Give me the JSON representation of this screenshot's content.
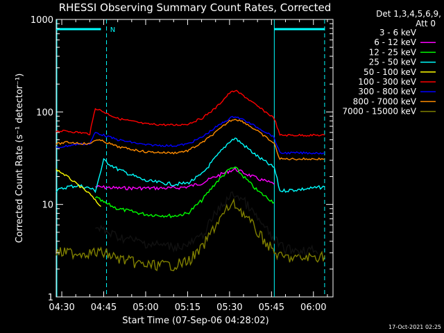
{
  "chart_data": {
    "type": "line",
    "title": "RHESSI Observing Summary Count Rates, Corrected",
    "xlabel": "Start Time (07-Sep-06 04:28:02)",
    "ylabel": "Corrected Count Rate (s⁻¹ detector⁻¹)",
    "y_scale": "log",
    "ylim": [
      1,
      1000
    ],
    "xlim": [
      "04:28",
      "06:07"
    ],
    "x_ticks": [
      "04:30",
      "04:45",
      "05:00",
      "05:15",
      "05:30",
      "05:45",
      "06:00"
    ],
    "y_ticks": [
      "1",
      "10",
      "100",
      "1000"
    ],
    "legend_header": [
      "Det 1,3,4,5,6,9,",
      "Att 0"
    ],
    "legend_placement": "right",
    "footer_date": "17-Oct-2021 02:25",
    "night_markers": [
      {
        "start": "04:28",
        "end": "04:44",
        "label": ""
      },
      {
        "start": "04:44",
        "end": "04:46",
        "label": "N"
      },
      {
        "start": "05:46",
        "end": "06:04",
        "label": ""
      }
    ],
    "series": [
      {
        "name": "3 - 6 keV",
        "color": "#000000",
        "x": [
          "04:42",
          "04:45",
          "04:50",
          "05:00",
          "05:10",
          "05:15",
          "05:20",
          "05:25",
          "05:30",
          "05:32",
          "05:35",
          "05:40",
          "05:45",
          "05:48",
          "05:50",
          "05:55",
          "06:00",
          "06:02"
        ],
        "y": [
          5.5,
          5.2,
          4.5,
          3.8,
          3.5,
          3.6,
          4.5,
          8,
          12,
          13,
          11,
          7,
          4.5,
          3.6,
          3.3,
          3.2,
          3.2,
          3.2
        ]
      },
      {
        "name": "6 - 12 keV",
        "color": "#ff00ff",
        "x": [
          "04:42",
          "04:45",
          "04:50",
          "05:00",
          "05:10",
          "05:15",
          "05:20",
          "05:25",
          "05:30",
          "05:32",
          "05:35",
          "05:40",
          "05:45",
          "05:46"
        ],
        "y": [
          15.5,
          15.3,
          15,
          15,
          15,
          15.5,
          17,
          20,
          23,
          24,
          22,
          19,
          17,
          16.5
        ]
      },
      {
        "name": "12 - 25 keV",
        "color": "#00ff00",
        "x": [
          "04:42",
          "04:45",
          "04:50",
          "05:00",
          "05:10",
          "05:15",
          "05:20",
          "05:25",
          "05:30",
          "05:32",
          "05:35",
          "05:40",
          "05:45",
          "05:46"
        ],
        "y": [
          12,
          10.5,
          9,
          7.8,
          7.5,
          8,
          11,
          17,
          24,
          25,
          20,
          14,
          11,
          10.5
        ]
      },
      {
        "name": "25 - 50 keV",
        "color": "#00ffff",
        "x": [
          "04:28",
          "04:32",
          "04:36",
          "04:40",
          "04:42",
          "04:45",
          "04:50",
          "05:00",
          "05:10",
          "05:15",
          "05:20",
          "05:25",
          "05:30",
          "05:32",
          "05:35",
          "05:40",
          "05:45",
          "05:46",
          "05:48",
          "05:55",
          "06:00",
          "06:04"
        ],
        "y": [
          14,
          15.5,
          16,
          15,
          14,
          30,
          24,
          18,
          16.5,
          17,
          21,
          32,
          48,
          52,
          44,
          33,
          26,
          25,
          14,
          14.5,
          15,
          15.5
        ]
      },
      {
        "name": "50 - 100 keV",
        "color": "#ffff00",
        "x": [
          "04:28",
          "04:32",
          "04:36",
          "04:40",
          "04:42",
          "04:44"
        ],
        "y": [
          24,
          20,
          16,
          13,
          11,
          9.5
        ]
      },
      {
        "name": "100 - 300 keV",
        "color": "#ff0000",
        "x": [
          "04:28",
          "04:32",
          "04:36",
          "04:40",
          "04:42",
          "04:45",
          "04:50",
          "05:00",
          "05:10",
          "05:15",
          "05:20",
          "05:25",
          "05:30",
          "05:32",
          "05:35",
          "05:40",
          "05:45",
          "05:46",
          "05:48",
          "05:55",
          "06:00",
          "06:04"
        ],
        "y": [
          62,
          62,
          60,
          58,
          110,
          100,
          85,
          74,
          72,
          74,
          85,
          110,
          160,
          170,
          150,
          115,
          90,
          85,
          56,
          56,
          56,
          56
        ]
      },
      {
        "name": "300 - 800 keV",
        "color": "#0000ff",
        "x": [
          "04:28",
          "04:32",
          "04:36",
          "04:40",
          "04:42",
          "04:45",
          "04:50",
          "05:00",
          "05:10",
          "05:15",
          "05:20",
          "05:25",
          "05:30",
          "05:32",
          "05:35",
          "05:40",
          "05:45",
          "05:46",
          "05:48",
          "05:55",
          "06:00",
          "06:04"
        ],
        "y": [
          41,
          43,
          45,
          45,
          60,
          56,
          50,
          44,
          43,
          45,
          53,
          68,
          85,
          90,
          82,
          68,
          56,
          52,
          36,
          36,
          36,
          36
        ]
      },
      {
        "name": "800 - 7000 keV",
        "color": "#ff8c00",
        "x": [
          "04:28",
          "04:32",
          "04:36",
          "04:40",
          "04:42",
          "04:45",
          "04:50",
          "05:00",
          "05:10",
          "05:15",
          "05:20",
          "05:25",
          "05:30",
          "05:32",
          "05:35",
          "05:40",
          "05:45",
          "05:46",
          "05:48",
          "05:55",
          "06:00",
          "06:04"
        ],
        "y": [
          45,
          47,
          46,
          45,
          50,
          48,
          42,
          37,
          36,
          38,
          46,
          60,
          80,
          84,
          78,
          62,
          48,
          45,
          31,
          31,
          31,
          31
        ]
      },
      {
        "name": "7000 - 15000 keV",
        "color": "#808000",
        "x": [
          "04:28",
          "04:35",
          "04:40",
          "04:45",
          "04:50",
          "05:00",
          "05:10",
          "05:15",
          "05:20",
          "05:25",
          "05:30",
          "05:32",
          "05:35",
          "05:40",
          "05:45",
          "05:48",
          "05:55",
          "06:00",
          "06:04"
        ],
        "y": [
          3,
          3,
          3,
          3,
          2.6,
          2.2,
          2.2,
          2.4,
          3.3,
          6,
          9.5,
          10,
          8,
          5,
          3.3,
          2.7,
          2.6,
          2.7,
          2.8
        ]
      }
    ]
  }
}
